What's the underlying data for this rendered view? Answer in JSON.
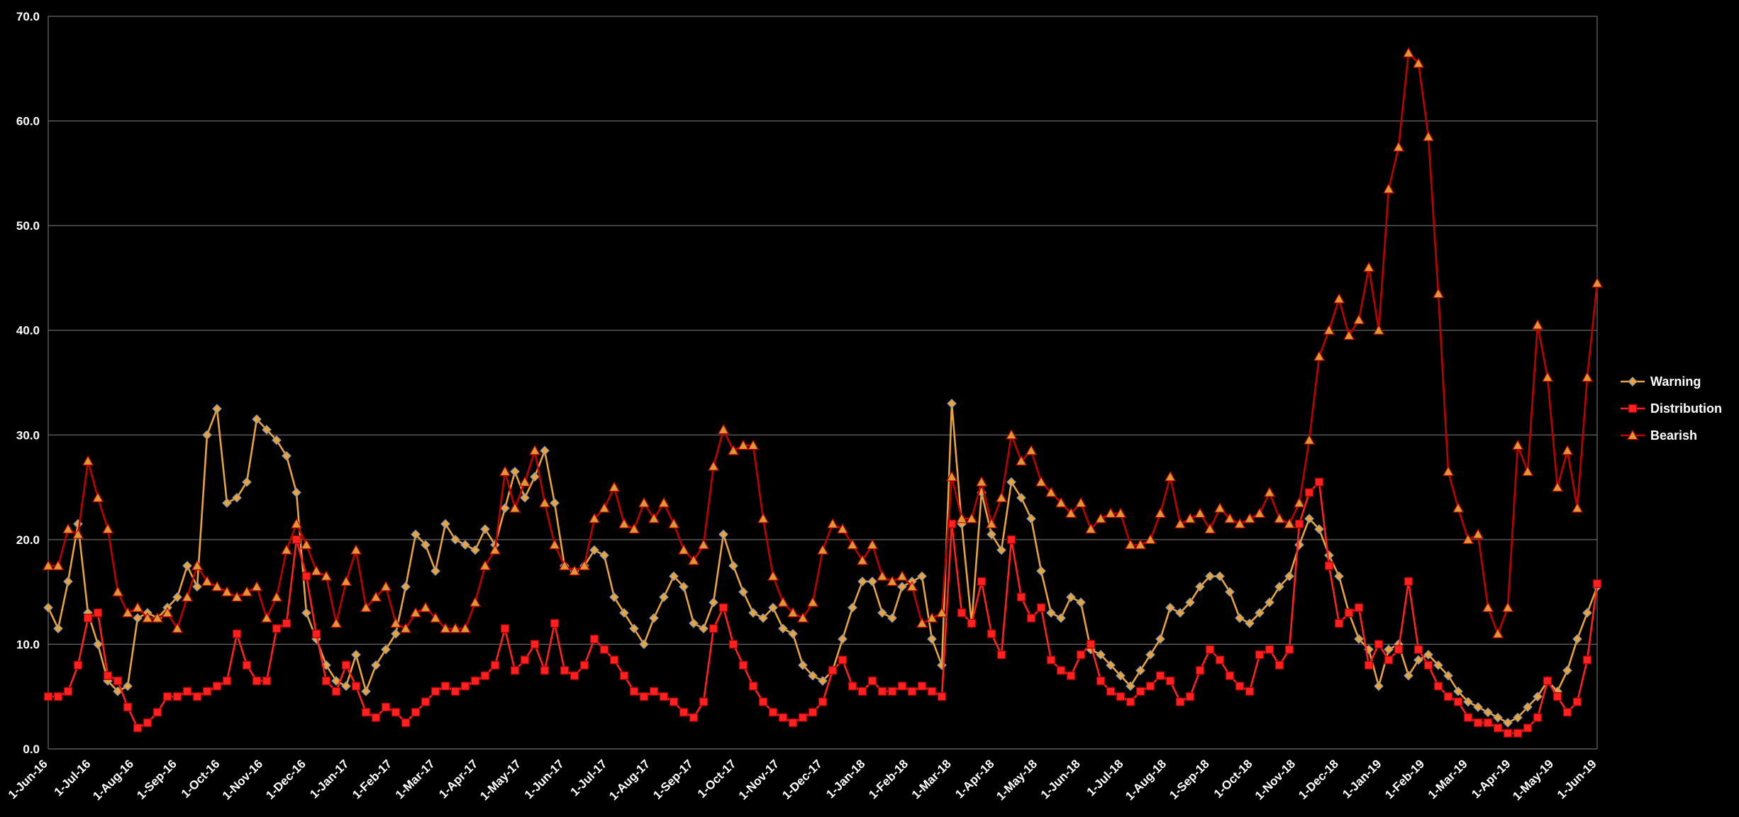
{
  "chart_data": {
    "type": "line",
    "title": "",
    "background": "#000000",
    "grid": true,
    "y_axis": {
      "min": 0,
      "max": 70,
      "step": 10,
      "tick_labels": [
        "0.0",
        "10.0",
        "20.0",
        "30.0",
        "40.0",
        "50.0",
        "60.0",
        "70.0"
      ],
      "gridline_color": "#7F7F7F",
      "axis_color": "#7F7F7F",
      "label_color": "#FFFFFF"
    },
    "x_axis": {
      "tick_labels": [
        "1-Jun-16",
        "1-Jul-16",
        "1-Aug-16",
        "1-Sep-16",
        "1-Oct-16",
        "1-Nov-16",
        "1-Dec-16",
        "1-Jan-17",
        "1-Feb-17",
        "1-Mar-17",
        "1-Apr-17",
        "1-May-17",
        "1-Jun-17",
        "1-Jul-17",
        "1-Aug-17",
        "1-Sep-17",
        "1-Oct-17",
        "1-Nov-17",
        "1-Dec-17",
        "1-Jan-18",
        "1-Feb-18",
        "1-Mar-18",
        "1-Apr-18",
        "1-May-18",
        "1-Jun-18",
        "1-Jul-18",
        "1-Aug-18",
        "1-Sep-18",
        "1-Oct-18",
        "1-Nov-18",
        "1-Dec-18",
        "1-Jan-19",
        "1-Feb-19",
        "1-Mar-19",
        "1-Apr-19",
        "1-May-19",
        "1-Jun-19"
      ],
      "label_color": "#FFFFFF",
      "label_rotation_deg": -45
    },
    "legend": {
      "position": "right",
      "text_color": "#FFFFFF"
    },
    "series": [
      {
        "name": "Warning",
        "color": "#E8A33D",
        "marker": "diamond",
        "marker_fill": "#E8A33D",
        "marker_stroke": "#8596B0",
        "values": [
          13.5,
          11.5,
          16,
          21.5,
          13,
          10,
          6.5,
          5.5,
          6,
          12.5,
          13,
          12.5,
          13.5,
          14.5,
          17.5,
          15.5,
          30,
          32.5,
          23.5,
          24,
          25.5,
          31.5,
          30.5,
          29.5,
          28,
          24.5,
          13,
          10.5,
          8,
          6.5,
          6,
          9,
          5.5,
          8,
          9.5,
          11,
          15.5,
          20.5,
          19.5,
          17,
          21.5,
          20,
          19.5,
          19,
          21,
          19.5,
          23,
          26.5,
          24,
          26,
          28.5,
          23.5,
          17.5,
          17,
          17.5,
          19,
          18.5,
          14.5,
          13,
          11.5,
          10,
          12.5,
          14.5,
          16.5,
          15.5,
          12,
          11.5,
          14,
          20.5,
          17.5,
          15,
          13,
          12.5,
          13.5,
          11.5,
          11,
          8,
          7,
          6.5,
          7.5,
          10.5,
          13.5,
          16,
          16,
          13,
          12.5,
          15.5,
          16,
          16.5,
          10.5,
          8,
          33,
          21.5,
          12,
          24.5,
          20.5,
          19,
          25.5,
          24,
          22,
          17,
          13,
          12.5,
          14.5,
          14,
          9.5,
          9,
          8,
          7,
          6,
          7.5,
          9,
          10.5,
          13.5,
          13,
          14,
          15.5,
          16.5,
          16.5,
          15,
          12.5,
          12,
          13,
          14,
          15.5,
          16.5,
          19.5,
          22,
          21,
          18.5,
          16.5,
          13,
          10.5,
          9.5,
          6,
          9.5,
          10,
          7,
          8.5,
          9,
          8,
          7,
          5.5,
          4.5,
          4,
          3.5,
          3,
          2.5,
          3,
          4,
          5,
          6.5,
          5.5,
          7.5,
          10.5,
          13,
          15.5
        ]
      },
      {
        "name": "Distribution",
        "color": "#FF2020",
        "marker": "square",
        "marker_fill": "#FF2020",
        "marker_stroke": "#A00000",
        "values": [
          5,
          5,
          5.5,
          8,
          12.5,
          13,
          7,
          6.5,
          4,
          2,
          2.5,
          3.5,
          5,
          5,
          5.5,
          5,
          5.5,
          6,
          6.5,
          11,
          8,
          6.5,
          6.5,
          11.5,
          12,
          20,
          16.5,
          11,
          6.5,
          5.5,
          8,
          6,
          3.5,
          3,
          4,
          3.5,
          2.5,
          3.5,
          4.5,
          5.5,
          6,
          5.5,
          6,
          6.5,
          7,
          8,
          11.5,
          7.5,
          8.5,
          10,
          7.5,
          12,
          7.5,
          7,
          8,
          10.5,
          9.5,
          8.5,
          7,
          5.5,
          5,
          5.5,
          5,
          4.5,
          3.5,
          3,
          4.5,
          11.5,
          13.5,
          10,
          8,
          6,
          4.5,
          3.5,
          3,
          2.5,
          3,
          3.5,
          4.5,
          7.5,
          8.5,
          6,
          5.5,
          6.5,
          5.5,
          5.5,
          6,
          5.5,
          6,
          5.5,
          5,
          21.5,
          13,
          12,
          16,
          11,
          9,
          20,
          14.5,
          12.5,
          13.5,
          8.5,
          7.5,
          7,
          9,
          10,
          6.5,
          5.5,
          5,
          4.5,
          5.5,
          6,
          7,
          6.5,
          4.5,
          5,
          7.5,
          9.5,
          8.5,
          7,
          6,
          5.5,
          9,
          9.5,
          8,
          9.5,
          21.5,
          24.5,
          25.5,
          17.5,
          12,
          13,
          13.5,
          8,
          10,
          8.5,
          9.5,
          16,
          9.5,
          8,
          6,
          5,
          4.5,
          3,
          2.5,
          2.5,
          2,
          1.5,
          1.5,
          2,
          3,
          6.5,
          5,
          3.5,
          4.5,
          8.5,
          15.8
        ]
      },
      {
        "name": "Bearish",
        "color": "#C00000",
        "marker": "triangle",
        "marker_fill": "#DD9933",
        "marker_stroke": "#C00000",
        "values": [
          17.5,
          17.5,
          21,
          20.5,
          27.5,
          24,
          21,
          15,
          13,
          13.5,
          12.5,
          12.5,
          13,
          11.5,
          14.5,
          17.5,
          16,
          15.5,
          15,
          14.5,
          15,
          15.5,
          12.5,
          14.5,
          19,
          21.5,
          19.5,
          17,
          16.5,
          12,
          16,
          19,
          13.5,
          14.5,
          15.5,
          12,
          11.5,
          13,
          13.5,
          12.5,
          11.5,
          11.5,
          11.5,
          14,
          17.5,
          19,
          26.5,
          23,
          25.5,
          28.5,
          23.5,
          19.5,
          17.5,
          17,
          17.5,
          22,
          23,
          25,
          21.5,
          21,
          23.5,
          22,
          23.5,
          21.5,
          19,
          18,
          19.5,
          27,
          30.5,
          28.5,
          29,
          29,
          22,
          16.5,
          14,
          13,
          12.5,
          14,
          19,
          21.5,
          21,
          19.5,
          18,
          19.5,
          16.5,
          16,
          16.5,
          15.5,
          12,
          12.5,
          13,
          26,
          22,
          22,
          25.5,
          21.5,
          24,
          30,
          27.5,
          28.5,
          25.5,
          24.5,
          23.5,
          22.5,
          23.5,
          21,
          22,
          22.5,
          22.5,
          19.5,
          19.5,
          20,
          22.5,
          26,
          21.5,
          22,
          22.5,
          21,
          23,
          22,
          21.5,
          22,
          22.5,
          24.5,
          22,
          21.5,
          23.5,
          29.5,
          37.5,
          40,
          43,
          39.5,
          41,
          46,
          40,
          53.5,
          57.5,
          66.5,
          65.5,
          58.5,
          43.5,
          26.5,
          23,
          20,
          20.5,
          13.5,
          11,
          13.5,
          29,
          26.5,
          40.5,
          35.5,
          25,
          28.5,
          23,
          35.5,
          44.5
        ]
      }
    ]
  }
}
